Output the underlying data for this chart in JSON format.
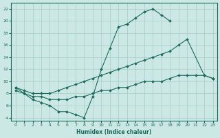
{
  "xlabel": "Humidex (Indice chaleur)",
  "xlim": [
    -0.5,
    23.5
  ],
  "ylim": [
    3.5,
    23
  ],
  "yticks": [
    4,
    6,
    8,
    10,
    12,
    14,
    16,
    18,
    20,
    22
  ],
  "xticks": [
    0,
    1,
    2,
    3,
    4,
    5,
    6,
    7,
    8,
    9,
    10,
    11,
    12,
    13,
    14,
    15,
    16,
    17,
    18,
    19,
    20,
    21,
    22,
    23
  ],
  "bg_color": "#cce8e4",
  "line_color": "#1a6b5a",
  "grid_color": "#a8ccc8",
  "line1_x": [
    0,
    1,
    2,
    3,
    4,
    5,
    6,
    7,
    8,
    9,
    10,
    11,
    12,
    13,
    14,
    15,
    16,
    17,
    18
  ],
  "line1_y": [
    9,
    8,
    7,
    6.5,
    6,
    5,
    5,
    4.5,
    4,
    7.5,
    12,
    15.5,
    19,
    19.5,
    20.5,
    21.5,
    22,
    21,
    20
  ],
  "line2_x": [
    0,
    1,
    2,
    3,
    4,
    5,
    6,
    7,
    8,
    9,
    10,
    11,
    12,
    13,
    14,
    15,
    16,
    17,
    18,
    19,
    20,
    22,
    23
  ],
  "line2_y": [
    9,
    8.5,
    8,
    8,
    8,
    8.5,
    9,
    9.5,
    10,
    10.5,
    11,
    11.5,
    12,
    12.5,
    13,
    13.5,
    14,
    14.5,
    15,
    16,
    17,
    11,
    10.5
  ],
  "line3_x": [
    0,
    1,
    2,
    3,
    4,
    5,
    6,
    7,
    8,
    9,
    10,
    11,
    12,
    13,
    14,
    15,
    16,
    17,
    18,
    19,
    20,
    21,
    22,
    23
  ],
  "line3_y": [
    8.5,
    8,
    7.5,
    7.5,
    7,
    7,
    7,
    7.5,
    7.5,
    8,
    8.5,
    8.5,
    9,
    9,
    9.5,
    10,
    10,
    10,
    10.5,
    11,
    11,
    11,
    11,
    10.5
  ]
}
